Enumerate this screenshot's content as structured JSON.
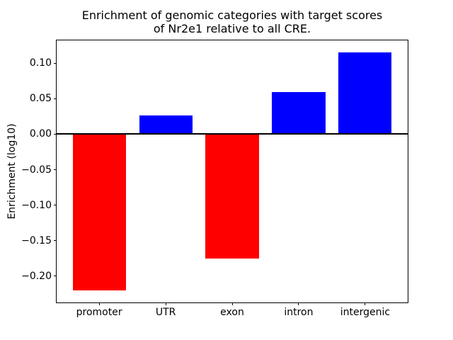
{
  "figure": {
    "background_color": "#ffffff",
    "axis_color": "#000000"
  },
  "chart_data": {
    "type": "bar",
    "title_lines": [
      "Enrichment of genomic categories with target scores",
      "of Nr2e1 relative to all CRE."
    ],
    "title": "Enrichment of genomic categories with target scores of Nr2e1 relative to all CRE.",
    "xlabel": "",
    "ylabel": "Enrichment (log10)",
    "categories": [
      "promoter",
      "UTR",
      "exon",
      "intron",
      "intergenic"
    ],
    "values": [
      -0.22,
      0.026,
      -0.175,
      0.059,
      0.115
    ],
    "positive_color": "#0000ff",
    "negative_color": "#ff0000",
    "bar_colors": [
      "#ff0000",
      "#0000ff",
      "#ff0000",
      "#0000ff",
      "#0000ff"
    ],
    "yticks": [
      0.1,
      0.05,
      0.0,
      -0.05,
      -0.1,
      -0.15,
      -0.2
    ],
    "ytick_labels": [
      "0.10",
      "0.05",
      "0.00",
      "−0.05",
      "−0.10",
      "−0.15",
      "−0.20"
    ],
    "ylim": [
      -0.237,
      0.132
    ],
    "xlim": [
      -0.64,
      4.64
    ],
    "bar_width_fraction": 0.8,
    "zero_line": true,
    "grid": false,
    "legend": false
  }
}
